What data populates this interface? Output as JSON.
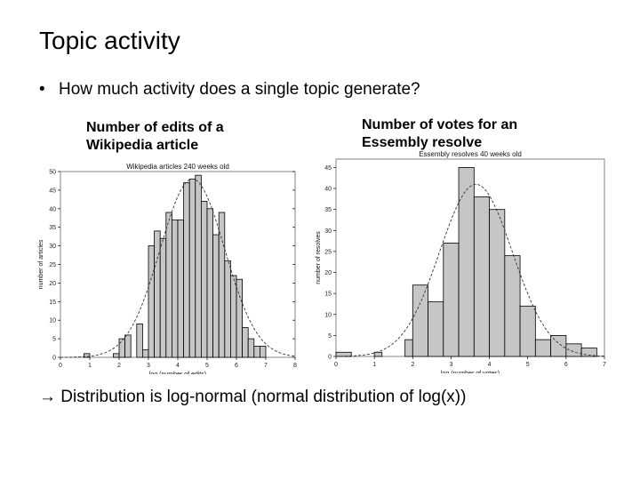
{
  "slide": {
    "title": "Topic activity",
    "bullet": "How much activity does a single topic generate?",
    "bullet_marker": "•",
    "conclusion_arrow": "→",
    "conclusion": "Distribution is log-normal (normal distribution of log(x))"
  },
  "captions": {
    "left_line1": "Number of edits of a",
    "left_line2": "Wikipedia article",
    "right_line1": "Number of votes for an",
    "right_line2": "Essembly resolve"
  },
  "chart_data": [
    {
      "type": "bar",
      "title": "Wikipedia articles 240 weeks old",
      "xlabel": "log (number of edits)",
      "ylabel": "number of articles",
      "xlim": [
        0,
        8
      ],
      "ylim": [
        0,
        50
      ],
      "xticks": [
        0,
        1,
        2,
        3,
        4,
        5,
        6,
        7,
        8
      ],
      "yticks": [
        0,
        5,
        10,
        15,
        20,
        25,
        30,
        35,
        40,
        45,
        50
      ],
      "bins": [
        {
          "x0": 0.8,
          "x1": 1.0,
          "value": 1
        },
        {
          "x0": 1.8,
          "x1": 2.0,
          "value": 1
        },
        {
          "x0": 2.0,
          "x1": 2.2,
          "value": 5
        },
        {
          "x0": 2.2,
          "x1": 2.4,
          "value": 6
        },
        {
          "x0": 2.6,
          "x1": 2.8,
          "value": 9
        },
        {
          "x0": 2.8,
          "x1": 3.0,
          "value": 2
        },
        {
          "x0": 3.0,
          "x1": 3.2,
          "value": 30
        },
        {
          "x0": 3.2,
          "x1": 3.4,
          "value": 34
        },
        {
          "x0": 3.4,
          "x1": 3.6,
          "value": 32
        },
        {
          "x0": 3.6,
          "x1": 3.8,
          "value": 39
        },
        {
          "x0": 3.8,
          "x1": 4.0,
          "value": 37
        },
        {
          "x0": 4.0,
          "x1": 4.2,
          "value": 37
        },
        {
          "x0": 4.2,
          "x1": 4.4,
          "value": 47
        },
        {
          "x0": 4.4,
          "x1": 4.6,
          "value": 48
        },
        {
          "x0": 4.6,
          "x1": 4.8,
          "value": 49
        },
        {
          "x0": 4.8,
          "x1": 5.0,
          "value": 42
        },
        {
          "x0": 5.0,
          "x1": 5.2,
          "value": 40
        },
        {
          "x0": 5.2,
          "x1": 5.4,
          "value": 33
        },
        {
          "x0": 5.4,
          "x1": 5.6,
          "value": 39
        },
        {
          "x0": 5.6,
          "x1": 5.8,
          "value": 26
        },
        {
          "x0": 5.8,
          "x1": 6.0,
          "value": 22
        },
        {
          "x0": 6.0,
          "x1": 6.2,
          "value": 21
        },
        {
          "x0": 6.2,
          "x1": 6.4,
          "value": 8
        },
        {
          "x0": 6.4,
          "x1": 6.6,
          "value": 5
        },
        {
          "x0": 6.6,
          "x1": 6.8,
          "value": 3
        },
        {
          "x0": 6.8,
          "x1": 7.0,
          "value": 3
        }
      ],
      "fit_curve": {
        "distribution": "normal",
        "mean": 4.5,
        "sd": 1.1,
        "peak": 48
      }
    },
    {
      "type": "bar",
      "title": "Essembly resolves 40 weeks old",
      "xlabel": "log (number of votes)",
      "ylabel": "number of resolves",
      "xlim": [
        0,
        7
      ],
      "ylim": [
        0,
        47
      ],
      "xticks": [
        0,
        1,
        2,
        3,
        4,
        5,
        6,
        7
      ],
      "yticks": [
        0,
        5,
        10,
        15,
        20,
        25,
        30,
        35,
        40,
        45
      ],
      "bins": [
        {
          "x0": 0.0,
          "x1": 0.4,
          "value": 1
        },
        {
          "x0": 1.0,
          "x1": 1.2,
          "value": 1
        },
        {
          "x0": 1.8,
          "x1": 2.0,
          "value": 4
        },
        {
          "x0": 2.0,
          "x1": 2.4,
          "value": 17
        },
        {
          "x0": 2.4,
          "x1": 2.8,
          "value": 13
        },
        {
          "x0": 2.8,
          "x1": 3.2,
          "value": 27
        },
        {
          "x0": 3.2,
          "x1": 3.6,
          "value": 45
        },
        {
          "x0": 3.6,
          "x1": 4.0,
          "value": 38
        },
        {
          "x0": 4.0,
          "x1": 4.4,
          "value": 35
        },
        {
          "x0": 4.4,
          "x1": 4.8,
          "value": 24
        },
        {
          "x0": 4.8,
          "x1": 5.2,
          "value": 12
        },
        {
          "x0": 5.2,
          "x1": 5.6,
          "value": 4
        },
        {
          "x0": 5.6,
          "x1": 6.0,
          "value": 5
        },
        {
          "x0": 6.0,
          "x1": 6.4,
          "value": 3
        },
        {
          "x0": 6.4,
          "x1": 6.8,
          "value": 2
        }
      ],
      "fit_curve": {
        "distribution": "normal",
        "mean": 3.65,
        "sd": 0.95,
        "peak": 41
      }
    }
  ]
}
